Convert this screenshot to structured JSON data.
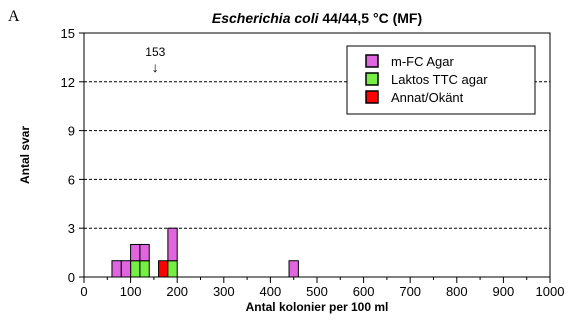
{
  "panel_letter": "A",
  "chart_data": {
    "type": "bar",
    "title_italic": "Escherichia coli",
    "title_rest": " 44/44,5 °C (MF)",
    "xlabel": "Antal kolonier per 100 ml",
    "ylabel": "Antal svar",
    "xlim": [
      0,
      1000
    ],
    "ylim": [
      0,
      15
    ],
    "x_ticks": [
      0,
      100,
      200,
      300,
      400,
      500,
      600,
      700,
      800,
      900,
      1000
    ],
    "x_minor_step": 50,
    "y_ticks": [
      0,
      3,
      6,
      9,
      12,
      15
    ],
    "grid": "horizontal-dashed",
    "legend_position": "top-right",
    "bin_width": 20,
    "series": [
      {
        "name": "m-FC Agar",
        "color": "#e066e0",
        "bins": [
          [
            60,
            1
          ],
          [
            80,
            1
          ],
          [
            100,
            1
          ],
          [
            120,
            1
          ],
          [
            180,
            2
          ],
          [
            440,
            1
          ]
        ]
      },
      {
        "name": "Laktos TTC agar",
        "color": "#77ee44",
        "bins": [
          [
            100,
            1
          ],
          [
            120,
            1
          ],
          [
            180,
            1
          ]
        ]
      },
      {
        "name": "Annat/Okänt",
        "color": "#ff0000",
        "bins": [
          [
            160,
            1
          ]
        ]
      }
    ],
    "annotations": [
      {
        "text": "153",
        "arrow": "↓",
        "x": 153
      }
    ]
  }
}
